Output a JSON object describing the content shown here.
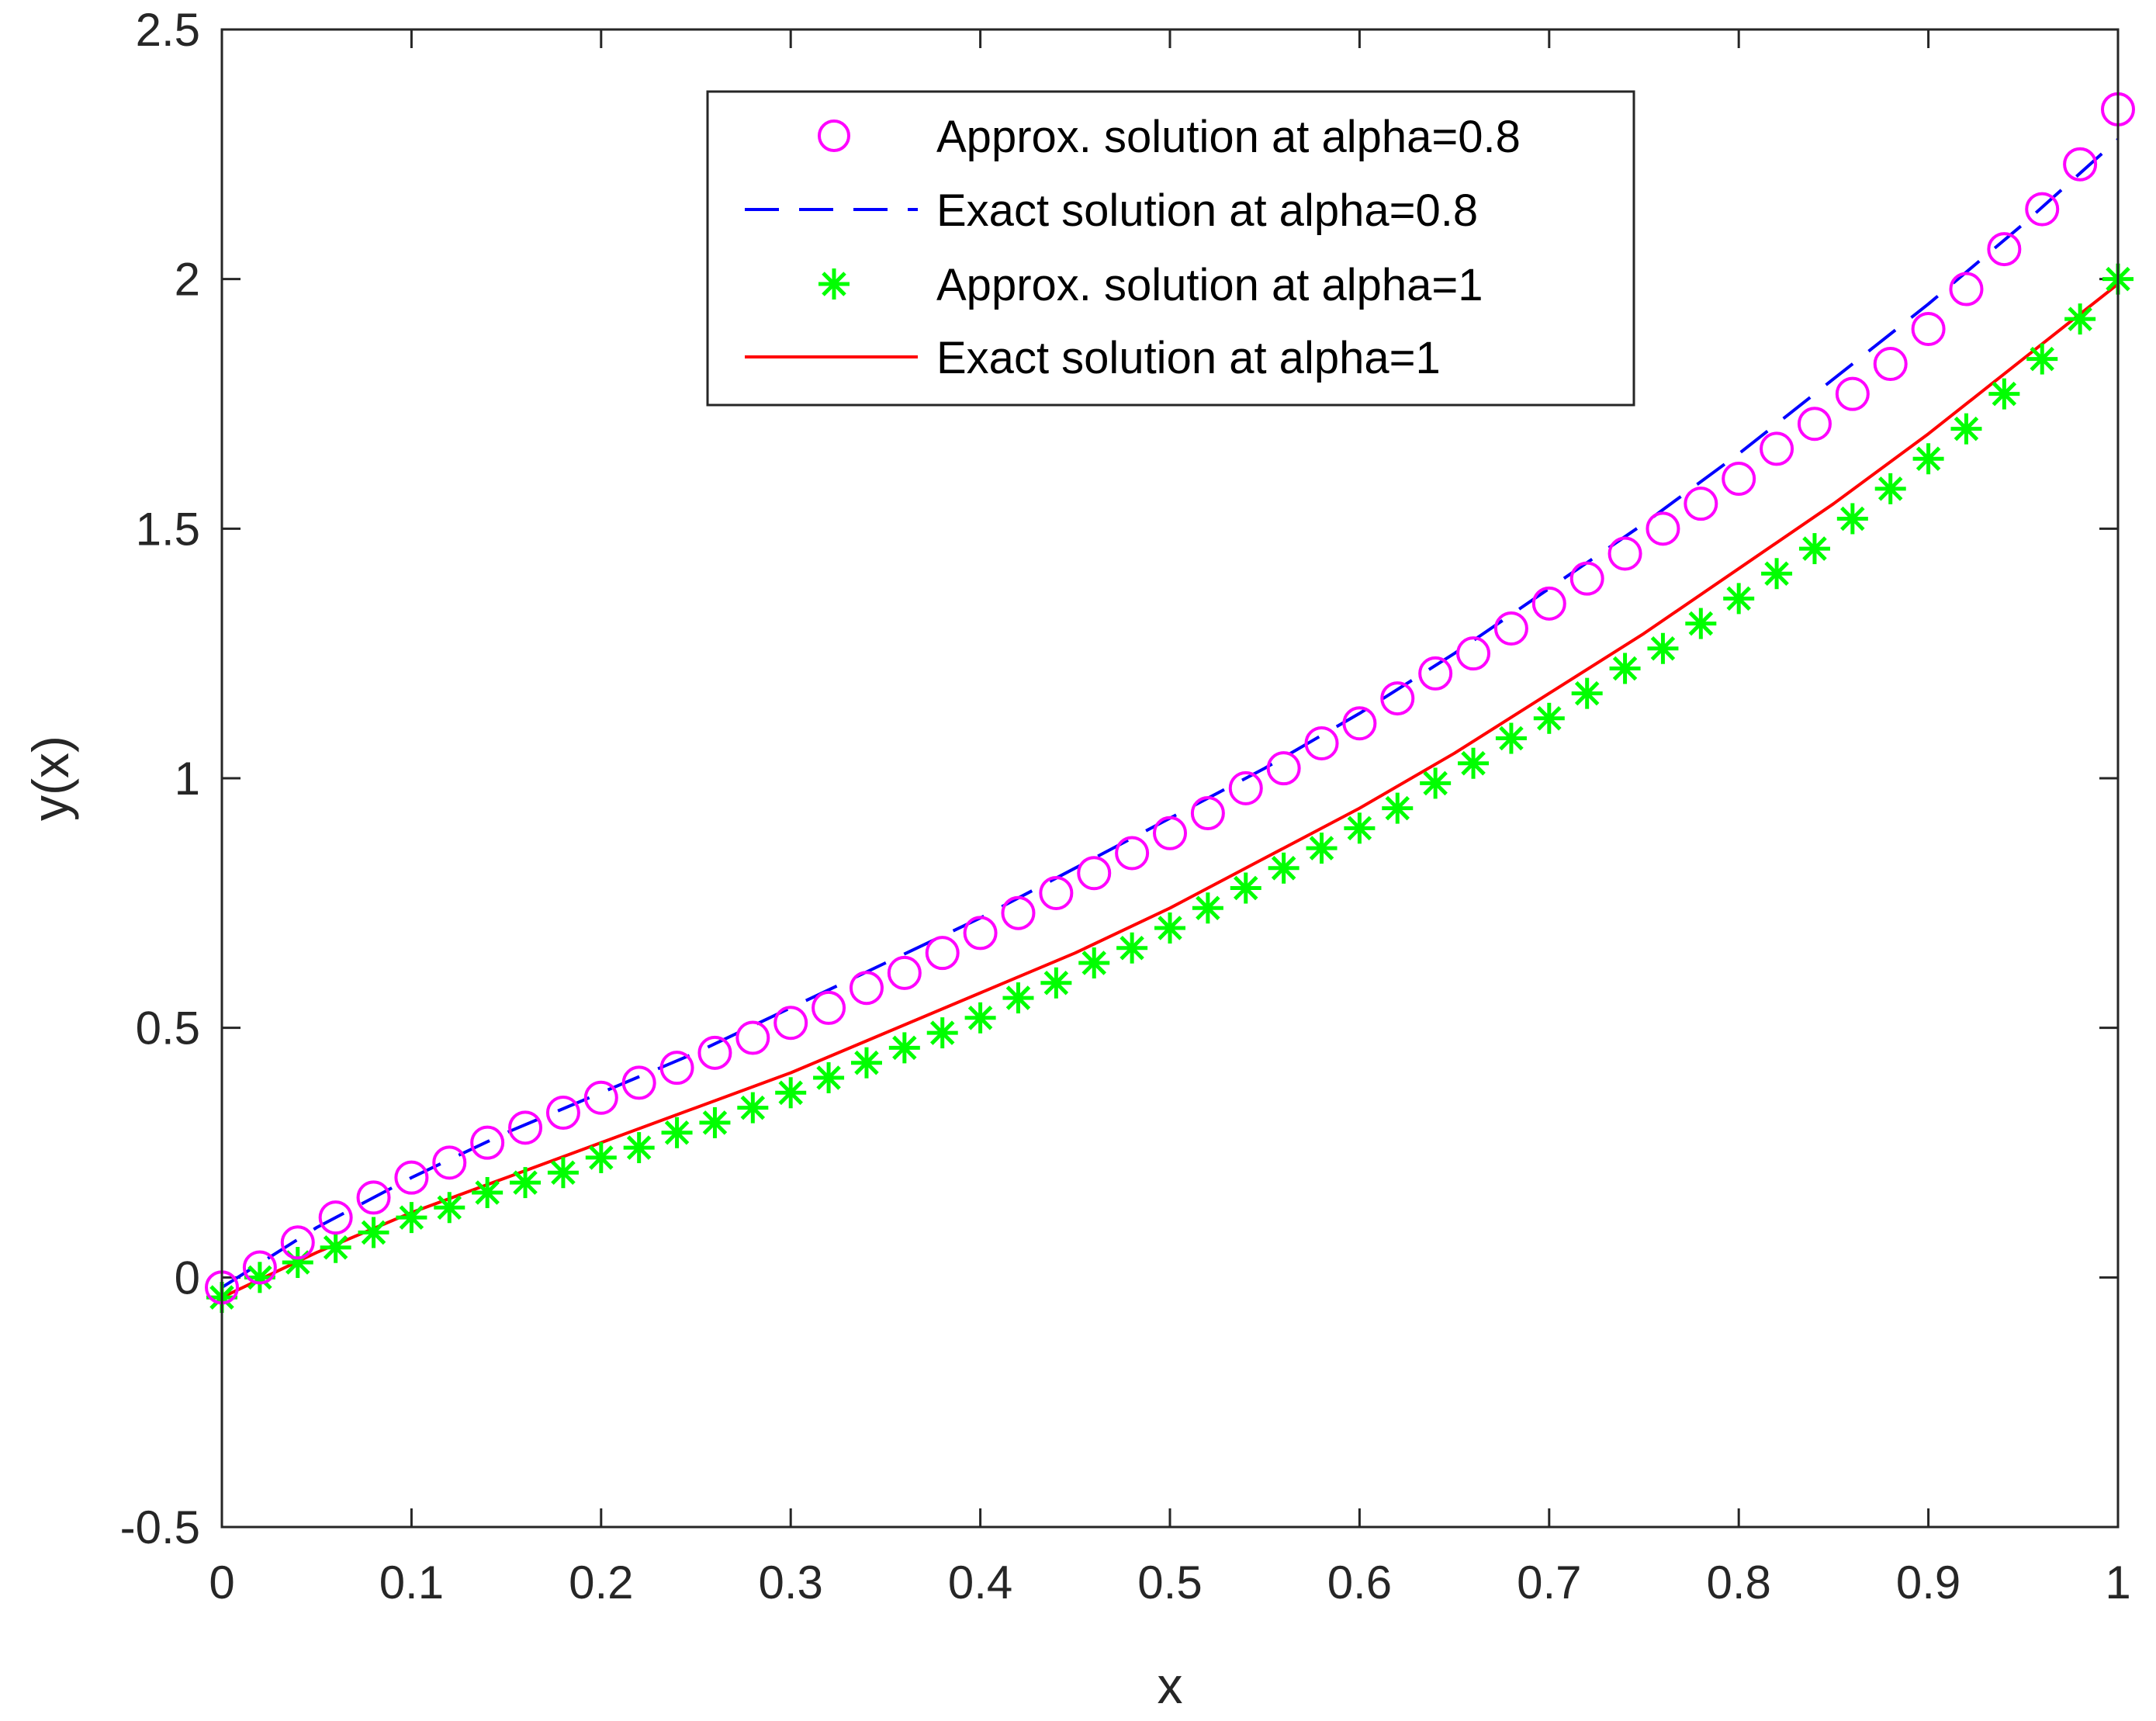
{
  "chart_data": {
    "type": "line",
    "xlabel": "x",
    "ylabel": "y(x)",
    "xlim": [
      0,
      1
    ],
    "ylim": [
      -0.5,
      2.5
    ],
    "x_ticks": [
      0,
      0.1,
      0.2,
      0.3,
      0.4,
      0.5,
      0.6,
      0.7,
      0.8,
      0.9,
      1
    ],
    "x_tick_labels": [
      "0",
      "0.1",
      "0.2",
      "0.3",
      "0.4",
      "0.5",
      "0.6",
      "0.7",
      "0.8",
      "0.9",
      "1"
    ],
    "y_ticks": [
      -0.5,
      0,
      0.5,
      1,
      1.5,
      2,
      2.5
    ],
    "y_tick_labels": [
      "-0.5",
      "0",
      "0.5",
      "1",
      "1.5",
      "2",
      "2.5"
    ],
    "grid": false,
    "legend_position": "top-right",
    "series": [
      {
        "name": "Approx. solution at alpha=0.8",
        "style": "markers",
        "marker": "circle",
        "color": "#ff00ff",
        "x": [
          0,
          0.02,
          0.04,
          0.06,
          0.08,
          0.1,
          0.12,
          0.14,
          0.16,
          0.18,
          0.2,
          0.22,
          0.24,
          0.26,
          0.28,
          0.3,
          0.32,
          0.34,
          0.36,
          0.38,
          0.4,
          0.42,
          0.44,
          0.46,
          0.48,
          0.5,
          0.52,
          0.54,
          0.56,
          0.58,
          0.6,
          0.62,
          0.64,
          0.66,
          0.68,
          0.7,
          0.72,
          0.74,
          0.76,
          0.78,
          0.8,
          0.82,
          0.84,
          0.86,
          0.88,
          0.9,
          0.92,
          0.94,
          0.96,
          0.98,
          1
        ],
        "y": [
          -0.02,
          0.02,
          0.07,
          0.12,
          0.16,
          0.2,
          0.23,
          0.27,
          0.3,
          0.33,
          0.36,
          0.39,
          0.42,
          0.45,
          0.48,
          0.51,
          0.54,
          0.58,
          0.61,
          0.65,
          0.69,
          0.73,
          0.77,
          0.81,
          0.85,
          0.89,
          0.93,
          0.98,
          1.02,
          1.07,
          1.11,
          1.16,
          1.21,
          1.25,
          1.3,
          1.35,
          1.4,
          1.45,
          1.5,
          1.55,
          1.6,
          1.66,
          1.71,
          1.77,
          1.83,
          1.9,
          1.98,
          2.06,
          2.14,
          2.23,
          2.34
        ]
      },
      {
        "name": "Exact solution at alpha=0.8",
        "style": "dashed",
        "color": "#0000ff",
        "x": [
          0,
          0.05,
          0.1,
          0.15,
          0.2,
          0.25,
          0.3,
          0.35,
          0.4,
          0.45,
          0.5,
          0.55,
          0.6,
          0.65,
          0.7,
          0.75,
          0.8,
          0.85,
          0.9,
          0.95,
          1
        ],
        "y": [
          -0.02,
          0.1,
          0.2,
          0.29,
          0.37,
          0.45,
          0.54,
          0.63,
          0.72,
          0.82,
          0.92,
          1.02,
          1.13,
          1.25,
          1.38,
          1.51,
          1.65,
          1.8,
          1.95,
          2.11,
          2.28
        ]
      },
      {
        "name": "Approx. solution at alpha=1",
        "style": "markers",
        "marker": "asterisk",
        "color": "#00ff00",
        "x": [
          0,
          0.02,
          0.04,
          0.06,
          0.08,
          0.1,
          0.12,
          0.14,
          0.16,
          0.18,
          0.2,
          0.22,
          0.24,
          0.26,
          0.28,
          0.3,
          0.32,
          0.34,
          0.36,
          0.38,
          0.4,
          0.42,
          0.44,
          0.46,
          0.48,
          0.5,
          0.52,
          0.54,
          0.56,
          0.58,
          0.6,
          0.62,
          0.64,
          0.66,
          0.68,
          0.7,
          0.72,
          0.74,
          0.76,
          0.78,
          0.8,
          0.82,
          0.84,
          0.86,
          0.88,
          0.9,
          0.92,
          0.94,
          0.96,
          0.98,
          1
        ],
        "y": [
          -0.04,
          0.0,
          0.03,
          0.06,
          0.09,
          0.12,
          0.14,
          0.17,
          0.19,
          0.21,
          0.24,
          0.26,
          0.29,
          0.31,
          0.34,
          0.37,
          0.4,
          0.43,
          0.46,
          0.49,
          0.52,
          0.56,
          0.59,
          0.63,
          0.66,
          0.7,
          0.74,
          0.78,
          0.82,
          0.86,
          0.9,
          0.94,
          0.99,
          1.03,
          1.08,
          1.12,
          1.17,
          1.22,
          1.26,
          1.31,
          1.36,
          1.41,
          1.46,
          1.52,
          1.58,
          1.64,
          1.7,
          1.77,
          1.84,
          1.92,
          2.0
        ]
      },
      {
        "name": "Exact solution at alpha=1",
        "style": "solid",
        "color": "#ff0000",
        "x": [
          0,
          0.05,
          0.1,
          0.15,
          0.2,
          0.25,
          0.3,
          0.35,
          0.4,
          0.45,
          0.5,
          0.55,
          0.6,
          0.65,
          0.7,
          0.75,
          0.8,
          0.85,
          0.9,
          0.95,
          1
        ],
        "y": [
          -0.04,
          0.05,
          0.13,
          0.2,
          0.27,
          0.34,
          0.41,
          0.49,
          0.57,
          0.65,
          0.74,
          0.84,
          0.94,
          1.05,
          1.17,
          1.29,
          1.42,
          1.55,
          1.69,
          1.84,
          1.99
        ]
      }
    ]
  }
}
